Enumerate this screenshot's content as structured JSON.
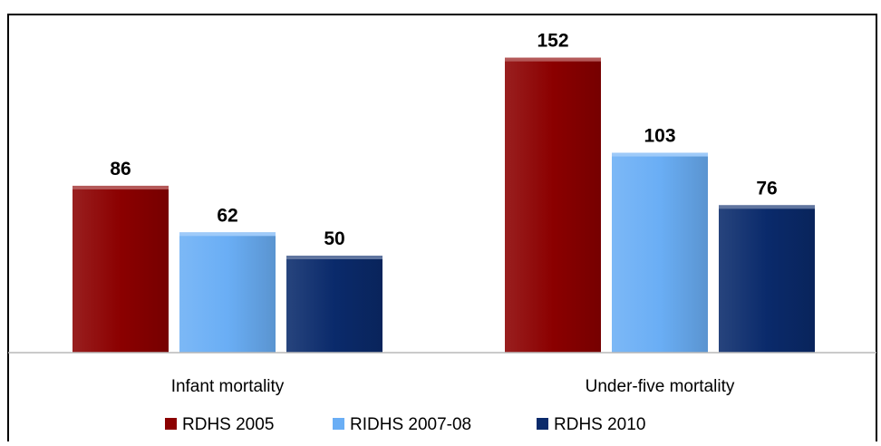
{
  "chart_data": {
    "type": "bar",
    "categories": [
      "Infant mortality",
      "Under-five mortality"
    ],
    "series": [
      {
        "name": "RDHS 2005",
        "values": [
          86,
          152
        ],
        "color": "#8B0000"
      },
      {
        "name": "RIDHS 2007-08",
        "values": [
          62,
          103
        ],
        "color": "#6AAEF5"
      },
      {
        "name": "RDHS 2010",
        "values": [
          50,
          76
        ],
        "color": "#0A2A6B"
      }
    ],
    "title": "",
    "xlabel": "",
    "ylabel": "",
    "ylim": [
      0,
      160
    ],
    "grid": false,
    "legend_position": "bottom"
  }
}
